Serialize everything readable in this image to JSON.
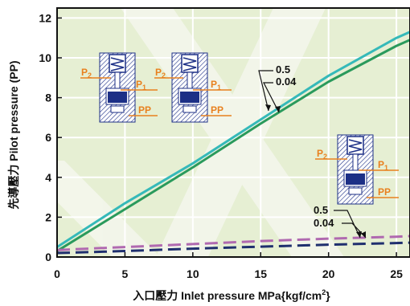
{
  "chart_data": {
    "type": "line",
    "xlabel": "入口壓力  Inlet pressure MPa{kgf/cm",
    "xlabel_sup": "2",
    "xlabel_end": "}",
    "ylabel": "先導壓力  Pilot pressure (PP)",
    "xlim": [
      0,
      26
    ],
    "ylim": [
      0,
      12.5
    ],
    "x_ticks": [
      "0",
      "5",
      "10",
      "15",
      "20",
      "25"
    ],
    "y_ticks": [
      "0",
      "2",
      "4",
      "6",
      "8",
      "10",
      "12"
    ],
    "grid": true,
    "series": [
      {
        "name": "0.5",
        "style": "solid",
        "color": "#35b9b9",
        "x": [
          0,
          5,
          10,
          15,
          20,
          25,
          26
        ],
        "y": [
          0.5,
          2.7,
          4.7,
          6.9,
          9.1,
          11.0,
          11.3
        ]
      },
      {
        "name": "0.04",
        "style": "solid",
        "color": "#2a9a5c",
        "x": [
          0,
          5,
          10,
          15,
          20,
          25,
          26
        ],
        "y": [
          0.3,
          2.4,
          4.5,
          6.7,
          8.8,
          10.6,
          10.9
        ]
      },
      {
        "name": "0.5",
        "style": "dashed",
        "color": "#b069b0",
        "x": [
          0,
          5,
          10,
          15,
          20,
          25,
          26
        ],
        "y": [
          0.35,
          0.5,
          0.65,
          0.8,
          0.92,
          1.02,
          1.05
        ]
      },
      {
        "name": "0.04",
        "style": "dashed",
        "color": "#1f2f6e",
        "x": [
          0,
          5,
          10,
          15,
          20,
          25,
          26
        ],
        "y": [
          0.2,
          0.3,
          0.42,
          0.52,
          0.62,
          0.7,
          0.72
        ]
      }
    ],
    "annotations": {
      "solid": [
        "0.5",
        "0.04"
      ],
      "dashed": [
        "0.5",
        "0.04"
      ]
    },
    "icon_labels": {
      "p2": "P",
      "p1": "P",
      "sub": "2",
      "sub1": "1",
      "pp": "PP"
    }
  },
  "colors": {
    "plot_bg": "#e6efd3",
    "watermark": "#f3f5ea",
    "grid": "#ffffff",
    "axis": "#111111",
    "orange": "#e8801e",
    "valve_blue": "#1c2f86"
  }
}
